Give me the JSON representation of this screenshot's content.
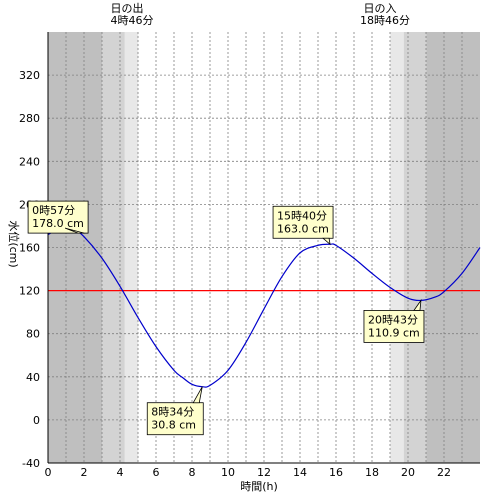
{
  "chart_data": {
    "type": "line",
    "xlabel": "時間(h)",
    "ylabel": "水位(cm)",
    "xlim": [
      0,
      24
    ],
    "ylim": [
      -40,
      360
    ],
    "x_ticks": [
      0,
      2,
      4,
      6,
      8,
      10,
      12,
      14,
      16,
      18,
      20,
      22
    ],
    "y_ticks": [
      -40,
      0,
      40,
      80,
      120,
      160,
      200,
      240,
      280,
      320
    ],
    "grid": true,
    "reference_line": {
      "y": 120,
      "color": "#ff0000"
    },
    "sunrise": {
      "title": "日の出",
      "time": "4時46分",
      "hour": 4.767
    },
    "sunset": {
      "title": "日の入",
      "time": "18時46分",
      "hour": 18.767
    },
    "series": [
      {
        "color": "#0000cc",
        "x": [
          0,
          0.5,
          0.95,
          1.5,
          2,
          3,
          4,
          5,
          6,
          7,
          7.5,
          8,
          8.57,
          9,
          10,
          11,
          12,
          13,
          14,
          15,
          15.67,
          16,
          17,
          18,
          19,
          20,
          20.72,
          21.5,
          22,
          23,
          24
        ],
        "y": [
          172,
          176.5,
          178,
          176,
          170,
          150,
          124,
          95,
          68,
          46,
          39,
          33,
          30.8,
          32,
          46,
          72,
          103,
          133,
          155,
          162,
          163,
          162,
          150,
          136,
          123,
          113,
          110.9,
          114,
          119,
          136,
          160
        ]
      }
    ],
    "annotations": [
      {
        "time": "0時57分",
        "value": "178.0 cm",
        "x": 0.95,
        "y": 178
      },
      {
        "time": "8時34分",
        "value": "30.8 cm",
        "x": 8.57,
        "y": 30.8
      },
      {
        "time": "15時40分",
        "value": "163.0 cm",
        "x": 15.67,
        "y": 163
      },
      {
        "time": "20時43分",
        "value": "110.9 cm",
        "x": 20.72,
        "y": 110.9
      }
    ],
    "colors": {
      "night": "#bfbfbf",
      "twilight_dark": "#d3d3d3",
      "twilight_light": "#e8e8e8",
      "day": "#ffffff",
      "grid": "#808080",
      "callout_bg": "#ffffcc"
    }
  }
}
